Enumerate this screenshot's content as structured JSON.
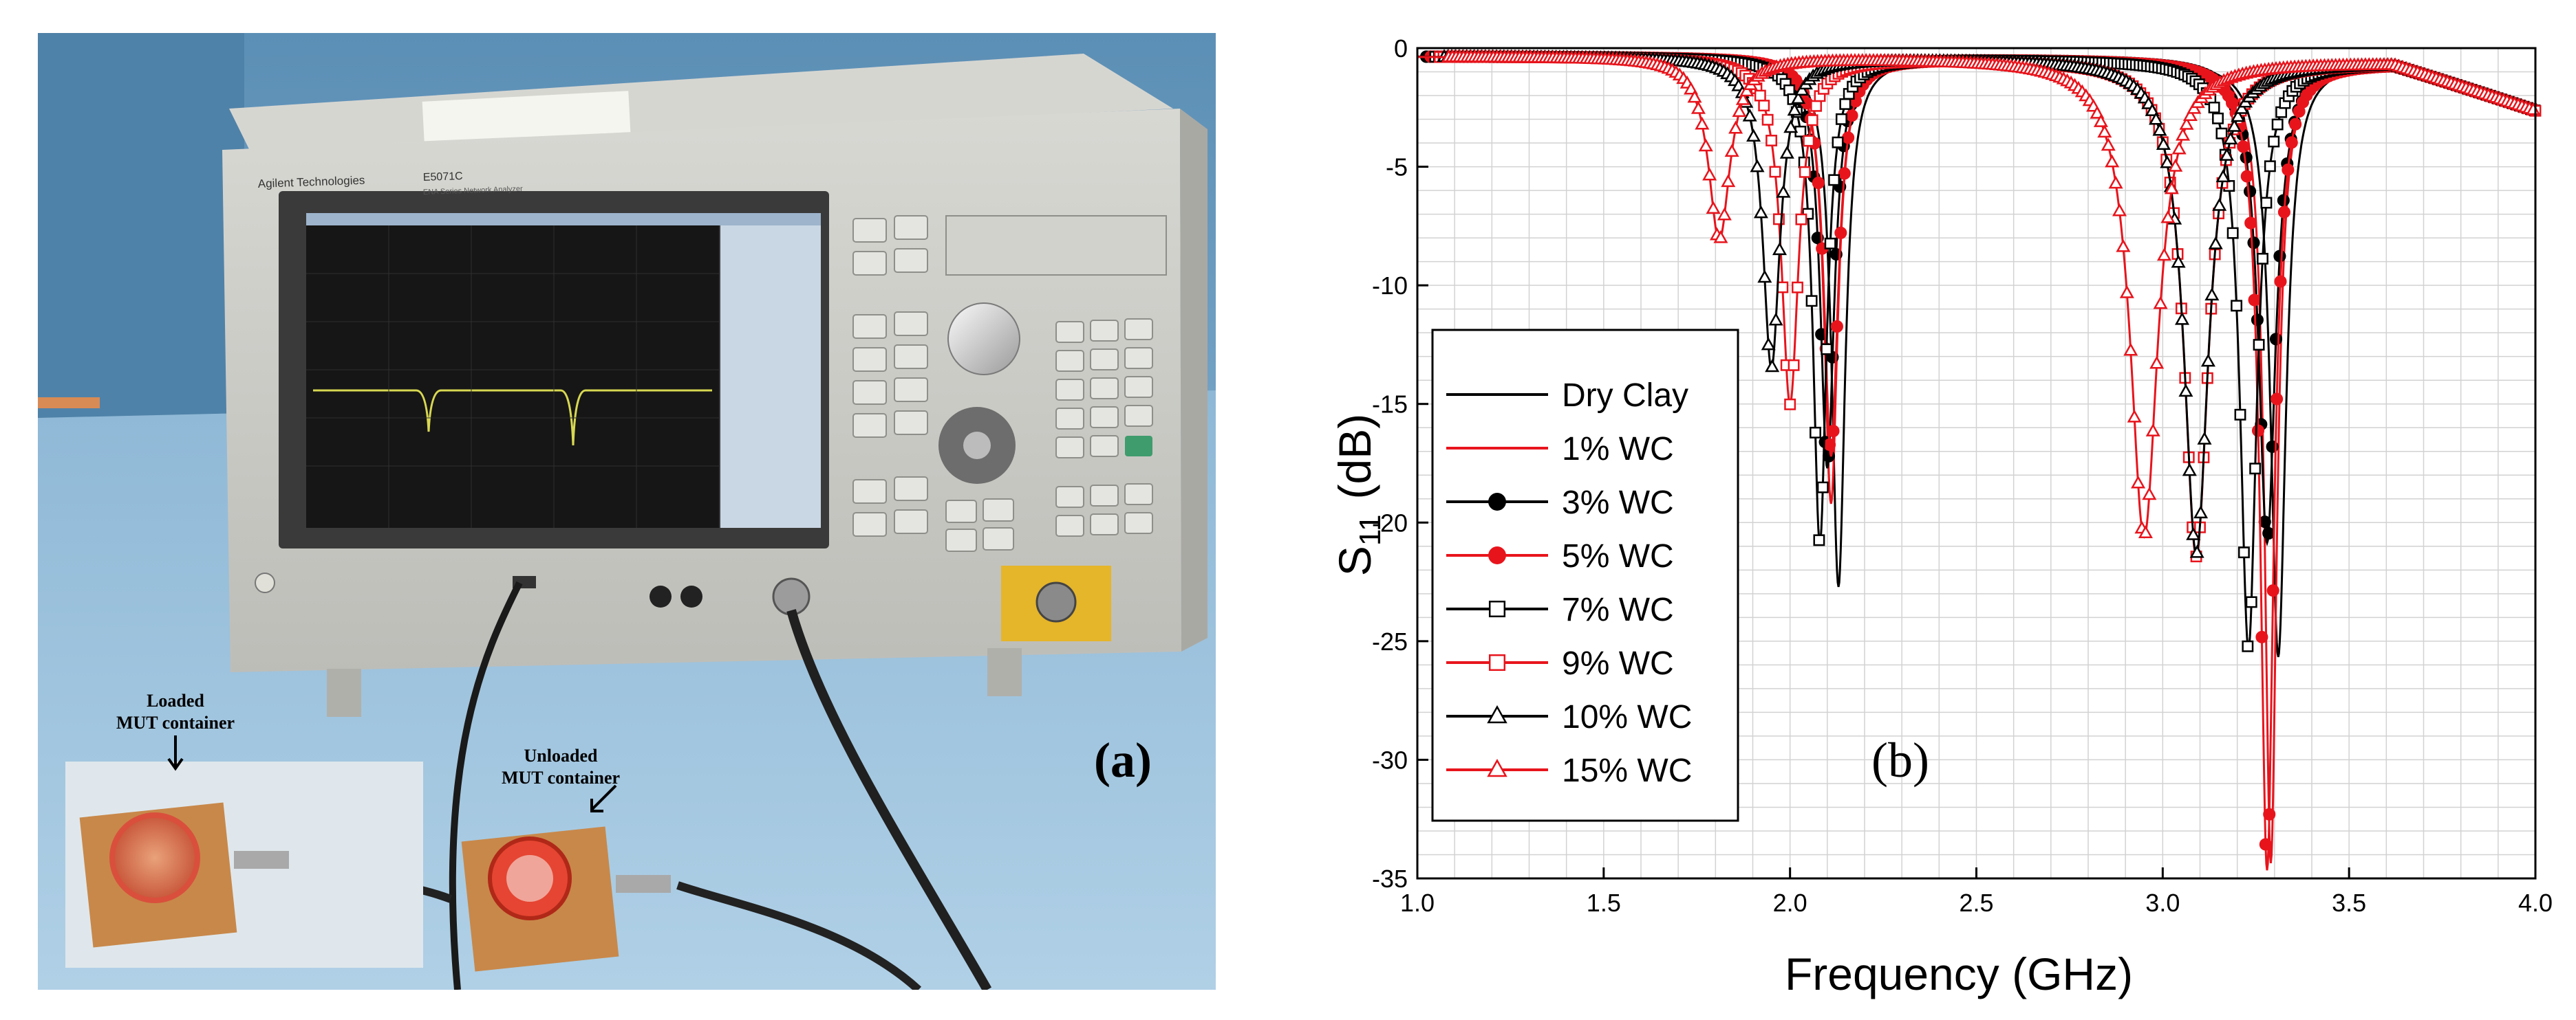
{
  "photo": {
    "panel_label": "(a)",
    "brand": "Agilent Technologies",
    "model": "E5071C",
    "subtitle": "ENA Series Network Analyzer",
    "annotations": {
      "loaded_line1": "Loaded",
      "loaded_line2": "MUT container",
      "unloaded_line1": "Unloaded",
      "unloaded_line2": "MUT container"
    }
  },
  "chart_data": {
    "type": "line",
    "panel_label": "(b)",
    "xlabel": "Frequency (GHz)",
    "ylabel_main": "S",
    "ylabel_sub": "11",
    "ylabel_unit": "(dB)",
    "xlim": [
      1.0,
      4.0
    ],
    "ylim": [
      -35,
      0
    ],
    "xticks": [
      "1.0",
      "1.5",
      "2.0",
      "2.5",
      "3.0",
      "3.5",
      "4.0"
    ],
    "yticks": [
      "0",
      "-5",
      "-10",
      "-15",
      "-20",
      "-25",
      "-30",
      "-35"
    ],
    "grid": true,
    "legend_position": "left-center",
    "series": [
      {
        "name": "Dry Clay",
        "color": "#000000",
        "marker": "none",
        "dips": [
          {
            "f": 2.13,
            "depth": -22.0,
            "w": 0.022
          },
          {
            "f": 3.31,
            "depth": -24.8,
            "w": 0.025
          }
        ]
      },
      {
        "name": "1% WC",
        "color": "#e8141c",
        "marker": "none",
        "dips": [
          {
            "f": 2.11,
            "depth": -18.5,
            "w": 0.022
          },
          {
            "f": 3.29,
            "depth": -33.5,
            "w": 0.02
          }
        ]
      },
      {
        "name": "3% WC",
        "color": "#000000",
        "marker": "filled-circle",
        "dips": [
          {
            "f": 2.1,
            "depth": -17.0,
            "w": 0.023
          },
          {
            "f": 3.28,
            "depth": -20.0,
            "w": 0.028
          }
        ]
      },
      {
        "name": "5% WC",
        "color": "#e8141c",
        "marker": "filled-circle",
        "dips": [
          {
            "f": 2.11,
            "depth": -16.5,
            "w": 0.023
          },
          {
            "f": 3.28,
            "depth": -33.8,
            "w": 0.022
          }
        ]
      },
      {
        "name": "7% WC",
        "color": "#000000",
        "marker": "open-square",
        "dips": [
          {
            "f": 2.08,
            "depth": -20.2,
            "w": 0.022
          },
          {
            "f": 3.23,
            "depth": -24.5,
            "w": 0.027
          }
        ]
      },
      {
        "name": "9% WC",
        "color": "#e8141c",
        "marker": "open-square",
        "dips": [
          {
            "f": 2.0,
            "depth": -14.3,
            "w": 0.028
          },
          {
            "f": 3.09,
            "depth": -20.6,
            "w": 0.04
          }
        ]
      },
      {
        "name": "10% WC",
        "color": "#000000",
        "marker": "open-triangle",
        "dips": [
          {
            "f": 1.95,
            "depth": -12.8,
            "w": 0.028
          },
          {
            "f": 3.09,
            "depth": -20.5,
            "w": 0.04
          }
        ]
      },
      {
        "name": "15% WC",
        "color": "#e8141c",
        "marker": "open-triangle",
        "dips": [
          {
            "f": 1.81,
            "depth": -7.4,
            "w": 0.035
          },
          {
            "f": 2.95,
            "depth": -19.8,
            "w": 0.045
          }
        ]
      }
    ]
  }
}
